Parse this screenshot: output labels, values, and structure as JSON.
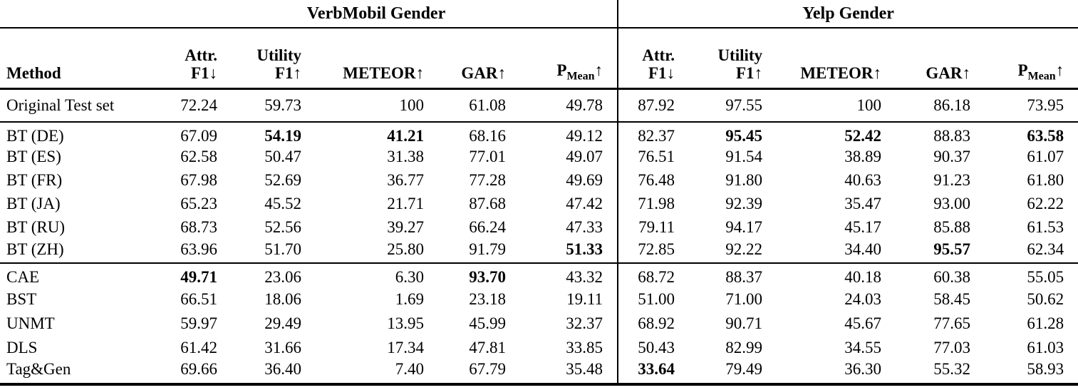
{
  "table": {
    "groups": [
      {
        "label": "VerbMobil Gender"
      },
      {
        "label": "Yelp Gender"
      }
    ],
    "columns": {
      "method": "Method",
      "attr": {
        "l1": "Attr.",
        "l2": "F1↓"
      },
      "utility": {
        "l1": "Utility",
        "l2": "F1↑"
      },
      "meteor": "METEOR↑",
      "gar": "GAR↑",
      "pmean": {
        "base": "P",
        "sub": "Mean",
        "arrow": "↑"
      }
    },
    "sections": {
      "original": [
        {
          "method": "Original Test set",
          "vm": [
            "72.24",
            "59.73",
            "100",
            "61.08",
            "49.78"
          ],
          "bold_vm": [],
          "yelp": [
            "87.92",
            "97.55",
            "100",
            "86.18",
            "73.95"
          ],
          "bold_yelp": []
        }
      ],
      "bt": [
        {
          "method": "BT (DE)",
          "vm": [
            "67.09",
            "54.19",
            "41.21",
            "68.16",
            "49.12"
          ],
          "bold_vm": [
            1,
            2
          ],
          "yelp": [
            "82.37",
            "95.45",
            "52.42",
            "88.83",
            "63.58"
          ],
          "bold_yelp": [
            1,
            2,
            4
          ]
        },
        {
          "method": "BT (ES)",
          "vm": [
            "62.58",
            "50.47",
            "31.38",
            "77.01",
            "49.07"
          ],
          "bold_vm": [],
          "yelp": [
            "76.51",
            "91.54",
            "38.89",
            "90.37",
            "61.07"
          ],
          "bold_yelp": []
        },
        {
          "method": "BT (FR)",
          "vm": [
            "67.98",
            "52.69",
            "36.77",
            "77.28",
            "49.69"
          ],
          "bold_vm": [],
          "yelp": [
            "76.48",
            "91.80",
            "40.63",
            "91.23",
            "61.80"
          ],
          "bold_yelp": []
        },
        {
          "method": "BT (JA)",
          "vm": [
            "65.23",
            "45.52",
            "21.71",
            "87.68",
            "47.42"
          ],
          "bold_vm": [],
          "yelp": [
            "71.98",
            "92.39",
            "35.47",
            "93.00",
            "62.22"
          ],
          "bold_yelp": []
        },
        {
          "method": "BT (RU)",
          "vm": [
            "68.73",
            "52.56",
            "39.27",
            "66.24",
            "47.33"
          ],
          "bold_vm": [],
          "yelp": [
            "79.11",
            "94.17",
            "45.17",
            "85.88",
            "61.53"
          ],
          "bold_yelp": []
        },
        {
          "method": "BT (ZH)",
          "vm": [
            "63.96",
            "51.70",
            "25.80",
            "91.79",
            "51.33"
          ],
          "bold_vm": [
            4
          ],
          "yelp": [
            "72.85",
            "92.22",
            "34.40",
            "95.57",
            "62.34"
          ],
          "bold_yelp": [
            3
          ]
        }
      ],
      "base": [
        {
          "method": "CAE",
          "vm": [
            "49.71",
            "23.06",
            "6.30",
            "93.70",
            "43.32"
          ],
          "bold_vm": [
            0,
            3
          ],
          "yelp": [
            "68.72",
            "88.37",
            "40.18",
            "60.38",
            "55.05"
          ],
          "bold_yelp": []
        },
        {
          "method": "BST",
          "vm": [
            "66.51",
            "18.06",
            "1.69",
            "23.18",
            "19.11"
          ],
          "bold_vm": [],
          "yelp": [
            "51.00",
            "71.00",
            "24.03",
            "58.45",
            "50.62"
          ],
          "bold_yelp": []
        },
        {
          "method": "UNMT",
          "vm": [
            "59.97",
            "29.49",
            "13.95",
            "45.99",
            "32.37"
          ],
          "bold_vm": [],
          "yelp": [
            "68.92",
            "90.71",
            "45.67",
            "77.65",
            "61.28"
          ],
          "bold_yelp": []
        },
        {
          "method": "DLS",
          "vm": [
            "61.42",
            "31.66",
            "17.34",
            "47.81",
            "33.85"
          ],
          "bold_vm": [],
          "yelp": [
            "50.43",
            "82.99",
            "34.55",
            "77.03",
            "61.03"
          ],
          "bold_yelp": []
        },
        {
          "method": "Tag&Gen",
          "vm": [
            "69.66",
            "36.40",
            "7.40",
            "67.79",
            "35.48"
          ],
          "bold_vm": [],
          "yelp": [
            "33.64",
            "79.49",
            "36.30",
            "55.32",
            "58.93"
          ],
          "bold_yelp": [
            0
          ]
        }
      ]
    }
  }
}
